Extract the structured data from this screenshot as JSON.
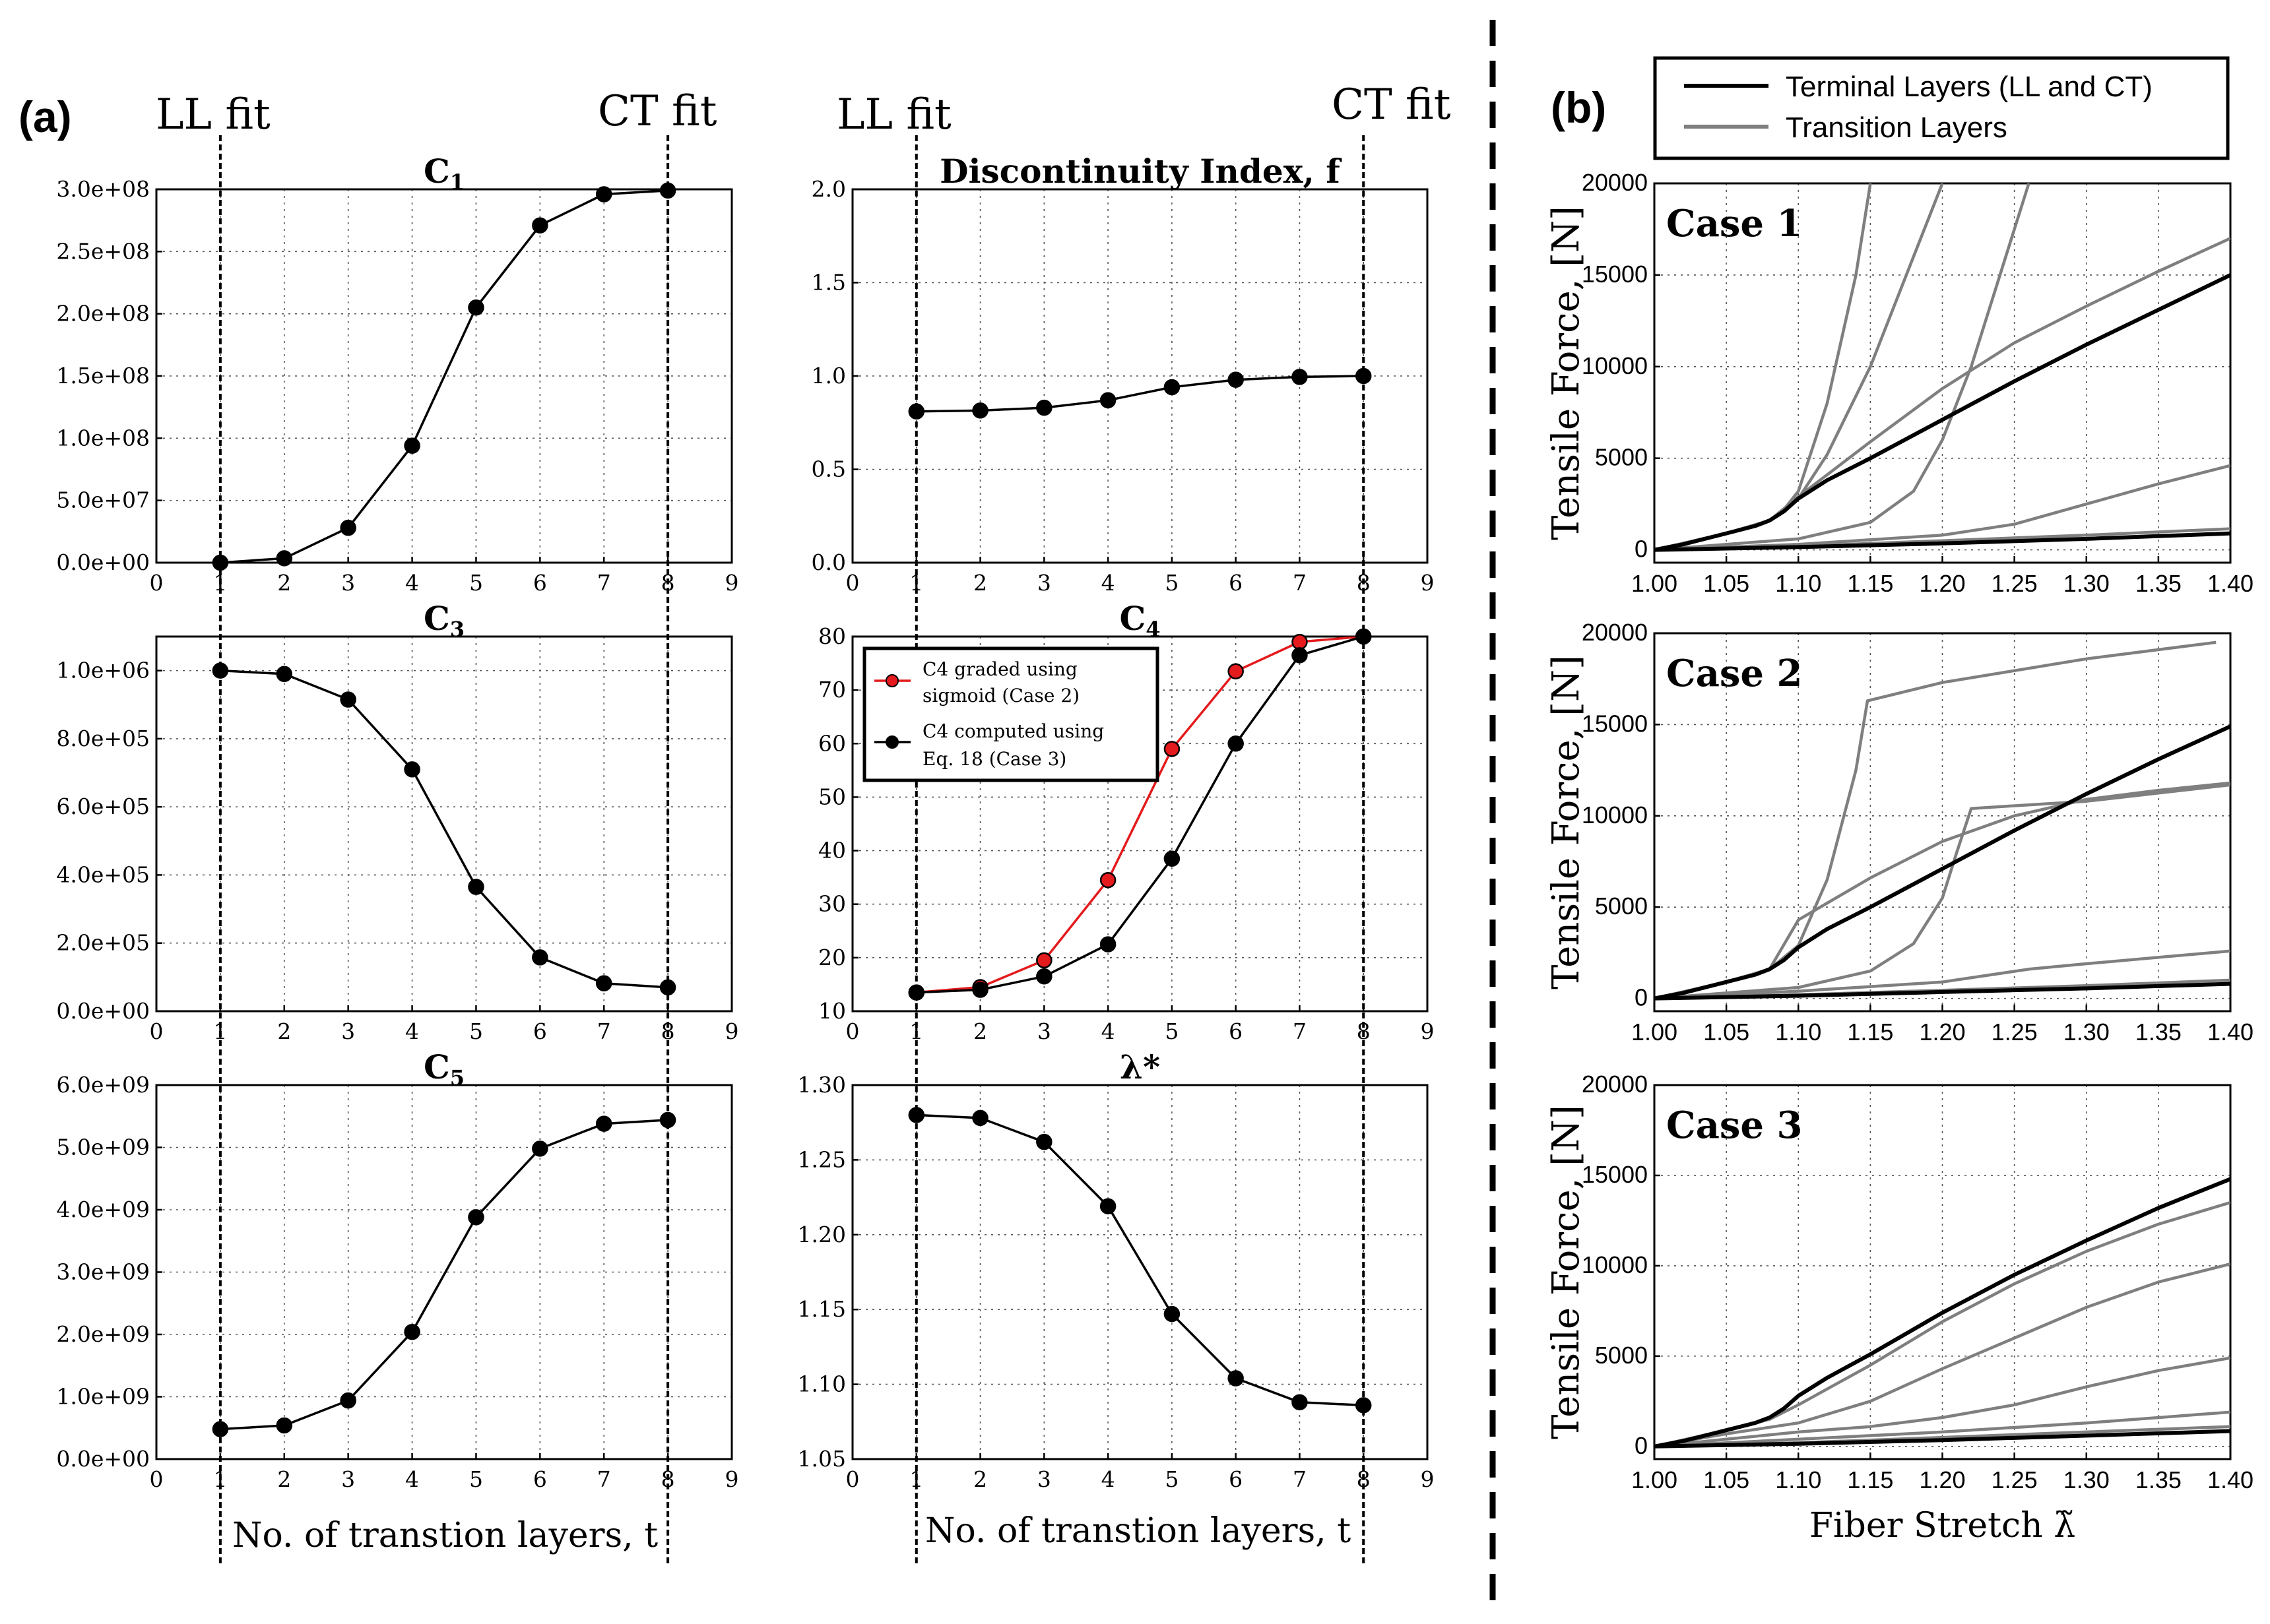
{
  "panel_a_label": "(a)",
  "panel_b_label": "(b)",
  "annotations": {
    "ll_fit": "LL fit",
    "ct_fit": "CT fit",
    "x_axis_label": "No. of transtion layers, t"
  },
  "legend_b": {
    "terminal": "Terminal Layers (LL and CT)",
    "transition": "Transition Layers"
  },
  "legend_c4": {
    "red": "C4 graded using sigmoid (Case 2)",
    "black": "C4 computed using Eq. 18 (Case 3)"
  },
  "colors": {
    "black": "#000000",
    "red": "#e41a1c",
    "gray": "#7f7f7f"
  },
  "chart_data": [
    {
      "id": "C1",
      "type": "line",
      "title": "C1",
      "x": [
        1,
        2,
        3,
        4,
        5,
        6,
        7,
        8
      ],
      "series": [
        {
          "name": "C1",
          "color": "#000000",
          "values": [
            0,
            3500000,
            28000000,
            94000000,
            205000000,
            271000000,
            296000000,
            299000000
          ]
        }
      ],
      "xlim": [
        0,
        9
      ],
      "ylim": [
        0,
        300000000
      ],
      "xticks": [
        "0",
        "1",
        "2",
        "3",
        "4",
        "5",
        "6",
        "7",
        "8",
        "9"
      ],
      "yticks": [
        "0.0e+00",
        "5.0e+07",
        "1.0e+08",
        "1.5e+08",
        "2.0e+08",
        "2.5e+08",
        "3.0e+08"
      ]
    },
    {
      "id": "f",
      "type": "line",
      "title": "Discontinuity Index, f",
      "x": [
        1,
        2,
        3,
        4,
        5,
        6,
        7,
        8
      ],
      "series": [
        {
          "name": "f",
          "color": "#000000",
          "values": [
            0.81,
            0.815,
            0.83,
            0.87,
            0.94,
            0.98,
            0.995,
            1.0
          ]
        }
      ],
      "xlim": [
        0,
        9
      ],
      "ylim": [
        0,
        2
      ],
      "xticks": [
        "0",
        "1",
        "2",
        "3",
        "4",
        "5",
        "6",
        "7",
        "8",
        "9"
      ],
      "yticks": [
        "0.0",
        "0.5",
        "1.0",
        "1.5",
        "2.0"
      ]
    },
    {
      "id": "C3",
      "type": "line",
      "title": "C3",
      "x": [
        1,
        2,
        3,
        4,
        5,
        6,
        7,
        8
      ],
      "series": [
        {
          "name": "C3",
          "color": "#000000",
          "values": [
            1000000,
            990000,
            915000,
            710000,
            365000,
            158000,
            82000,
            70000
          ]
        }
      ],
      "xlim": [
        0,
        9
      ],
      "ylim": [
        0,
        1100000
      ],
      "xticks": [
        "0",
        "1",
        "2",
        "3",
        "4",
        "5",
        "6",
        "7",
        "8",
        "9"
      ],
      "yticks": [
        "0.0e+00",
        "2.0e+05",
        "4.0e+05",
        "6.0e+05",
        "8.0e+05",
        "1.0e+06"
      ]
    },
    {
      "id": "C4",
      "type": "line",
      "title": "C4",
      "x": [
        1,
        2,
        3,
        4,
        5,
        6,
        7,
        8
      ],
      "series": [
        {
          "name": "C4 graded using sigmoid (Case 2)",
          "color": "#e41a1c",
          "values": [
            13.5,
            14.5,
            19.5,
            34.5,
            59,
            73.5,
            79,
            80
          ]
        },
        {
          "name": "C4 computed using Eq. 18 (Case 3)",
          "color": "#000000",
          "values": [
            13.5,
            14,
            16.5,
            22.5,
            38.5,
            60,
            76.5,
            80
          ]
        }
      ],
      "xlim": [
        0,
        9
      ],
      "ylim": [
        10,
        80
      ],
      "xticks": [
        "0",
        "1",
        "2",
        "3",
        "4",
        "5",
        "6",
        "7",
        "8",
        "9"
      ],
      "yticks": [
        "10",
        "20",
        "30",
        "40",
        "50",
        "60",
        "70",
        "80"
      ]
    },
    {
      "id": "C5",
      "type": "line",
      "title": "C5",
      "x": [
        1,
        2,
        3,
        4,
        5,
        6,
        7,
        8
      ],
      "series": [
        {
          "name": "C5",
          "color": "#000000",
          "values": [
            480000000,
            540000000,
            940000000,
            2040000000,
            3880000000,
            4980000000,
            5380000000,
            5440000000
          ]
        }
      ],
      "xlim": [
        0,
        9
      ],
      "ylim": [
        0,
        6000000000
      ],
      "xticks": [
        "0",
        "1",
        "2",
        "3",
        "4",
        "5",
        "6",
        "7",
        "8",
        "9"
      ],
      "yticks": [
        "0.0e+00",
        "1.0e+09",
        "2.0e+09",
        "3.0e+09",
        "4.0e+09",
        "5.0e+09",
        "6.0e+09"
      ]
    },
    {
      "id": "lambda",
      "type": "line",
      "title": "λ*",
      "x": [
        1,
        2,
        3,
        4,
        5,
        6,
        7,
        8
      ],
      "series": [
        {
          "name": "lambda*",
          "color": "#000000",
          "values": [
            1.28,
            1.278,
            1.262,
            1.219,
            1.147,
            1.104,
            1.088,
            1.086
          ]
        }
      ],
      "xlim": [
        0,
        9
      ],
      "ylim": [
        1.05,
        1.3
      ],
      "xticks": [
        "0",
        "1",
        "2",
        "3",
        "4",
        "5",
        "6",
        "7",
        "8",
        "9"
      ],
      "yticks": [
        "1.05",
        "1.10",
        "1.15",
        "1.20",
        "1.25",
        "1.30"
      ]
    },
    {
      "id": "case1",
      "type": "line",
      "title": "Case 1",
      "xlabel": "",
      "ylabel": "Tensile Force, [N]",
      "xlim": [
        1.0,
        1.4
      ],
      "ylim": [
        -700,
        20000
      ],
      "xticks": [
        "1.00",
        "1.05",
        "1.10",
        "1.15",
        "1.20",
        "1.25",
        "1.30",
        "1.35",
        "1.40"
      ],
      "yticks": [
        "0",
        "5000",
        "10000",
        "15000",
        "20000"
      ],
      "series": [
        {
          "name": "terminal-CT",
          "color": "#000000",
          "x": [
            1.0,
            1.02,
            1.05,
            1.07,
            1.08,
            1.09,
            1.1,
            1.12,
            1.15,
            1.2,
            1.25,
            1.3,
            1.35,
            1.4
          ],
          "values": [
            0,
            300,
            900,
            1300,
            1600,
            2100,
            2800,
            3800,
            5000,
            7100,
            9200,
            11200,
            13100,
            15000
          ]
        },
        {
          "name": "terminal-LL",
          "color": "#000000",
          "x": [
            1.0,
            1.1,
            1.2,
            1.3,
            1.4
          ],
          "values": [
            0,
            150,
            350,
            600,
            900
          ]
        },
        {
          "name": "transition-1",
          "color": "#7f7f7f",
          "x": [
            1.0,
            1.05,
            1.08,
            1.09,
            1.1,
            1.12,
            1.14,
            1.15
          ],
          "values": [
            0,
            900,
            1600,
            2200,
            3200,
            8000,
            15000,
            20000
          ]
        },
        {
          "name": "transition-2",
          "color": "#7f7f7f",
          "x": [
            1.0,
            1.05,
            1.08,
            1.1,
            1.12,
            1.15,
            1.18,
            1.2
          ],
          "values": [
            0,
            900,
            1600,
            2800,
            5200,
            10000,
            16000,
            20000
          ]
        },
        {
          "name": "transition-3",
          "color": "#7f7f7f",
          "x": [
            1.0,
            1.05,
            1.08,
            1.1,
            1.15,
            1.2,
            1.25,
            1.3,
            1.35,
            1.4
          ],
          "values": [
            0,
            900,
            1600,
            2900,
            5900,
            8800,
            11300,
            13300,
            15200,
            17000
          ]
        },
        {
          "name": "transition-4",
          "color": "#7f7f7f",
          "x": [
            1.0,
            1.1,
            1.15,
            1.18,
            1.2,
            1.22,
            1.24,
            1.26
          ],
          "values": [
            0,
            600,
            1500,
            3200,
            6000,
            10000,
            15000,
            20000
          ]
        },
        {
          "name": "transition-5",
          "color": "#7f7f7f",
          "x": [
            1.0,
            1.1,
            1.2,
            1.25,
            1.3,
            1.35,
            1.4
          ],
          "values": [
            0,
            300,
            800,
            1400,
            2500,
            3600,
            4600
          ]
        },
        {
          "name": "transition-6",
          "color": "#7f7f7f",
          "x": [
            1.0,
            1.1,
            1.2,
            1.3,
            1.4
          ],
          "values": [
            0,
            200,
            500,
            800,
            1150
          ]
        }
      ]
    },
    {
      "id": "case2",
      "type": "line",
      "title": "Case 2",
      "xlabel": "",
      "ylabel": "Tensile Force, [N]",
      "xlim": [
        1.0,
        1.4
      ],
      "ylim": [
        -700,
        20000
      ],
      "xticks": [
        "1.00",
        "1.05",
        "1.10",
        "1.15",
        "1.20",
        "1.25",
        "1.30",
        "1.35",
        "1.40"
      ],
      "yticks": [
        "0",
        "5000",
        "10000",
        "15000",
        "20000"
      ],
      "series": [
        {
          "name": "terminal-CT",
          "color": "#000000",
          "x": [
            1.0,
            1.02,
            1.05,
            1.07,
            1.08,
            1.09,
            1.1,
            1.12,
            1.15,
            1.2,
            1.25,
            1.3,
            1.35,
            1.4
          ],
          "values": [
            0,
            300,
            900,
            1300,
            1600,
            2100,
            2800,
            3800,
            5000,
            7100,
            9200,
            11200,
            13100,
            14900
          ]
        },
        {
          "name": "terminal-LL",
          "color": "#000000",
          "x": [
            1.0,
            1.1,
            1.2,
            1.3,
            1.4
          ],
          "values": [
            0,
            150,
            350,
            550,
            800
          ]
        },
        {
          "name": "transition-1",
          "color": "#7f7f7f",
          "x": [
            1.0,
            1.05,
            1.08,
            1.1,
            1.12,
            1.14,
            1.148,
            1.2,
            1.3,
            1.39
          ],
          "values": [
            0,
            900,
            1600,
            2900,
            6500,
            12500,
            16300,
            17300,
            18600,
            19500
          ]
        },
        {
          "name": "transition-2",
          "color": "#7f7f7f",
          "x": [
            1.0,
            1.05,
            1.08,
            1.1,
            1.15,
            1.2,
            1.25,
            1.3,
            1.35,
            1.4
          ],
          "values": [
            0,
            900,
            1600,
            4300,
            6600,
            8600,
            10000,
            10900,
            11400,
            11800
          ]
        },
        {
          "name": "transition-3",
          "color": "#7f7f7f",
          "x": [
            1.0,
            1.1,
            1.15,
            1.18,
            1.2,
            1.21,
            1.22,
            1.3,
            1.4
          ],
          "values": [
            0,
            600,
            1500,
            3000,
            5500,
            8000,
            10400,
            10800,
            11700
          ]
        },
        {
          "name": "transition-4",
          "color": "#7f7f7f",
          "x": [
            1.0,
            1.1,
            1.2,
            1.26,
            1.3,
            1.4
          ],
          "values": [
            0,
            400,
            900,
            1600,
            1900,
            2600
          ]
        },
        {
          "name": "transition-5",
          "color": "#7f7f7f",
          "x": [
            1.0,
            1.1,
            1.2,
            1.3,
            1.4
          ],
          "values": [
            0,
            200,
            450,
            700,
            1000
          ]
        }
      ]
    },
    {
      "id": "case3",
      "type": "line",
      "title": "Case 3",
      "xlabel": "Fiber Stretch λ̃",
      "ylabel": "Tensile Force, [N]",
      "xlim": [
        1.0,
        1.4
      ],
      "ylim": [
        -700,
        20000
      ],
      "xticks": [
        "1.00",
        "1.05",
        "1.10",
        "1.15",
        "1.20",
        "1.25",
        "1.30",
        "1.35",
        "1.40"
      ],
      "yticks": [
        "0",
        "5000",
        "10000",
        "15000",
        "20000"
      ],
      "series": [
        {
          "name": "terminal-CT",
          "color": "#000000",
          "x": [
            1.0,
            1.02,
            1.05,
            1.07,
            1.08,
            1.09,
            1.1,
            1.12,
            1.15,
            1.2,
            1.25,
            1.3,
            1.35,
            1.4
          ],
          "values": [
            0,
            300,
            900,
            1300,
            1600,
            2100,
            2800,
            3800,
            5100,
            7400,
            9500,
            11400,
            13200,
            14800
          ]
        },
        {
          "name": "terminal-LL",
          "color": "#000000",
          "x": [
            1.0,
            1.1,
            1.2,
            1.3,
            1.4
          ],
          "values": [
            0,
            150,
            350,
            600,
            850
          ]
        },
        {
          "name": "transition-1",
          "color": "#7f7f7f",
          "x": [
            1.0,
            1.05,
            1.08,
            1.1,
            1.15,
            1.2,
            1.25,
            1.3,
            1.35,
            1.4
          ],
          "values": [
            0,
            900,
            1500,
            2300,
            4500,
            6900,
            9000,
            10800,
            12300,
            13500
          ]
        },
        {
          "name": "transition-2",
          "color": "#7f7f7f",
          "x": [
            1.0,
            1.05,
            1.1,
            1.15,
            1.2,
            1.25,
            1.3,
            1.35,
            1.4
          ],
          "values": [
            0,
            700,
            1300,
            2500,
            4300,
            6000,
            7700,
            9100,
            10100
          ]
        },
        {
          "name": "transition-3",
          "color": "#7f7f7f",
          "x": [
            1.0,
            1.1,
            1.15,
            1.2,
            1.25,
            1.3,
            1.35,
            1.4
          ],
          "values": [
            0,
            800,
            1100,
            1600,
            2300,
            3300,
            4200,
            4900
          ]
        },
        {
          "name": "transition-4",
          "color": "#7f7f7f",
          "x": [
            1.0,
            1.1,
            1.2,
            1.3,
            1.4
          ],
          "values": [
            0,
            400,
            800,
            1300,
            1900
          ]
        },
        {
          "name": "transition-5",
          "color": "#7f7f7f",
          "x": [
            1.0,
            1.1,
            1.2,
            1.3,
            1.4
          ],
          "values": [
            0,
            200,
            500,
            800,
            1100
          ]
        }
      ]
    }
  ]
}
